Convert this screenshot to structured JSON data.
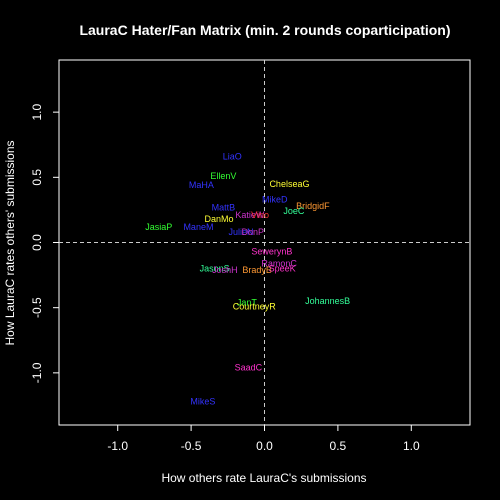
{
  "chart_data": {
    "type": "scatter",
    "title": "LauraC Hater/Fan Matrix (min. 2 rounds coparticipation)",
    "xlabel": "How others rate LauraC's submissions",
    "ylabel": "How LauraC rates others' submissions",
    "xlim": [
      -1.4,
      1.4
    ],
    "ylim": [
      -1.4,
      1.4
    ],
    "xticks": [
      -1.0,
      -0.5,
      0.0,
      0.5,
      1.0
    ],
    "xtick_labels": [
      "-1.0",
      "-0.5",
      "0.0",
      "0.5",
      "1.0"
    ],
    "yticks": [
      -1.0,
      -0.5,
      0.0,
      0.5,
      1.0
    ],
    "ytick_labels": [
      "-1.0",
      "-0.5",
      "0.0",
      "0.5",
      "1.0"
    ],
    "reference_lines": {
      "x": 0,
      "y": 0,
      "style": "dashed",
      "color": "#cccccc"
    },
    "background": "#000000",
    "foreground": "#ffffff",
    "grid": false,
    "points": [
      {
        "label": "LiaO",
        "x": -0.22,
        "y": 0.66,
        "color": "#3333ff"
      },
      {
        "label": "EllenV",
        "x": -0.28,
        "y": 0.51,
        "color": "#33ff33"
      },
      {
        "label": "MaHA",
        "x": -0.43,
        "y": 0.44,
        "color": "#3333ff"
      },
      {
        "label": "ChelseaG",
        "x": 0.17,
        "y": 0.45,
        "color": "#ffff33"
      },
      {
        "label": "MikeD",
        "x": 0.07,
        "y": 0.33,
        "color": "#3333ff"
      },
      {
        "label": "BridgidF",
        "x": 0.33,
        "y": 0.28,
        "color": "#ff9933"
      },
      {
        "label": "JoeC",
        "x": 0.2,
        "y": 0.24,
        "color": "#33ff99"
      },
      {
        "label": "MattB",
        "x": -0.28,
        "y": 0.27,
        "color": "#3333ff"
      },
      {
        "label": "KatieW",
        "x": -0.1,
        "y": 0.21,
        "color": "#cc33cc"
      },
      {
        "label": "Vino",
        "x": -0.03,
        "y": 0.21,
        "color": "#ff3333"
      },
      {
        "label": "DanMo",
        "x": -0.31,
        "y": 0.18,
        "color": "#ffff33"
      },
      {
        "label": "JasiaP",
        "x": -0.72,
        "y": 0.12,
        "color": "#33ff33"
      },
      {
        "label": "ManeM",
        "x": -0.45,
        "y": 0.12,
        "color": "#3333ff"
      },
      {
        "label": "JulieN",
        "x": -0.16,
        "y": 0.08,
        "color": "#3333ff"
      },
      {
        "label": "DonP",
        "x": -0.08,
        "y": 0.08,
        "color": "#cc33cc"
      },
      {
        "label": "SewerynB",
        "x": 0.05,
        "y": -0.07,
        "color": "#ff33cc"
      },
      {
        "label": "RamonC",
        "x": 0.1,
        "y": -0.16,
        "color": "#cc33cc"
      },
      {
        "label": "JasonS",
        "x": -0.34,
        "y": -0.2,
        "color": "#33ff99"
      },
      {
        "label": "JoshH",
        "x": -0.27,
        "y": -0.21,
        "color": "#cc33cc"
      },
      {
        "label": "BradyB",
        "x": -0.05,
        "y": -0.21,
        "color": "#ff9933"
      },
      {
        "label": "SpeeK",
        "x": 0.12,
        "y": -0.2,
        "color": "#ff33cc"
      },
      {
        "label": "JohannesB",
        "x": 0.43,
        "y": -0.45,
        "color": "#33ff99"
      },
      {
        "label": "JanT",
        "x": -0.12,
        "y": -0.46,
        "color": "#33ff33"
      },
      {
        "label": "CourtneyR",
        "x": -0.07,
        "y": -0.49,
        "color": "#ffff33"
      },
      {
        "label": "SaadC",
        "x": -0.11,
        "y": -0.96,
        "color": "#ff33cc"
      },
      {
        "label": "MikeS",
        "x": -0.42,
        "y": -1.22,
        "color": "#3333ff"
      }
    ]
  }
}
